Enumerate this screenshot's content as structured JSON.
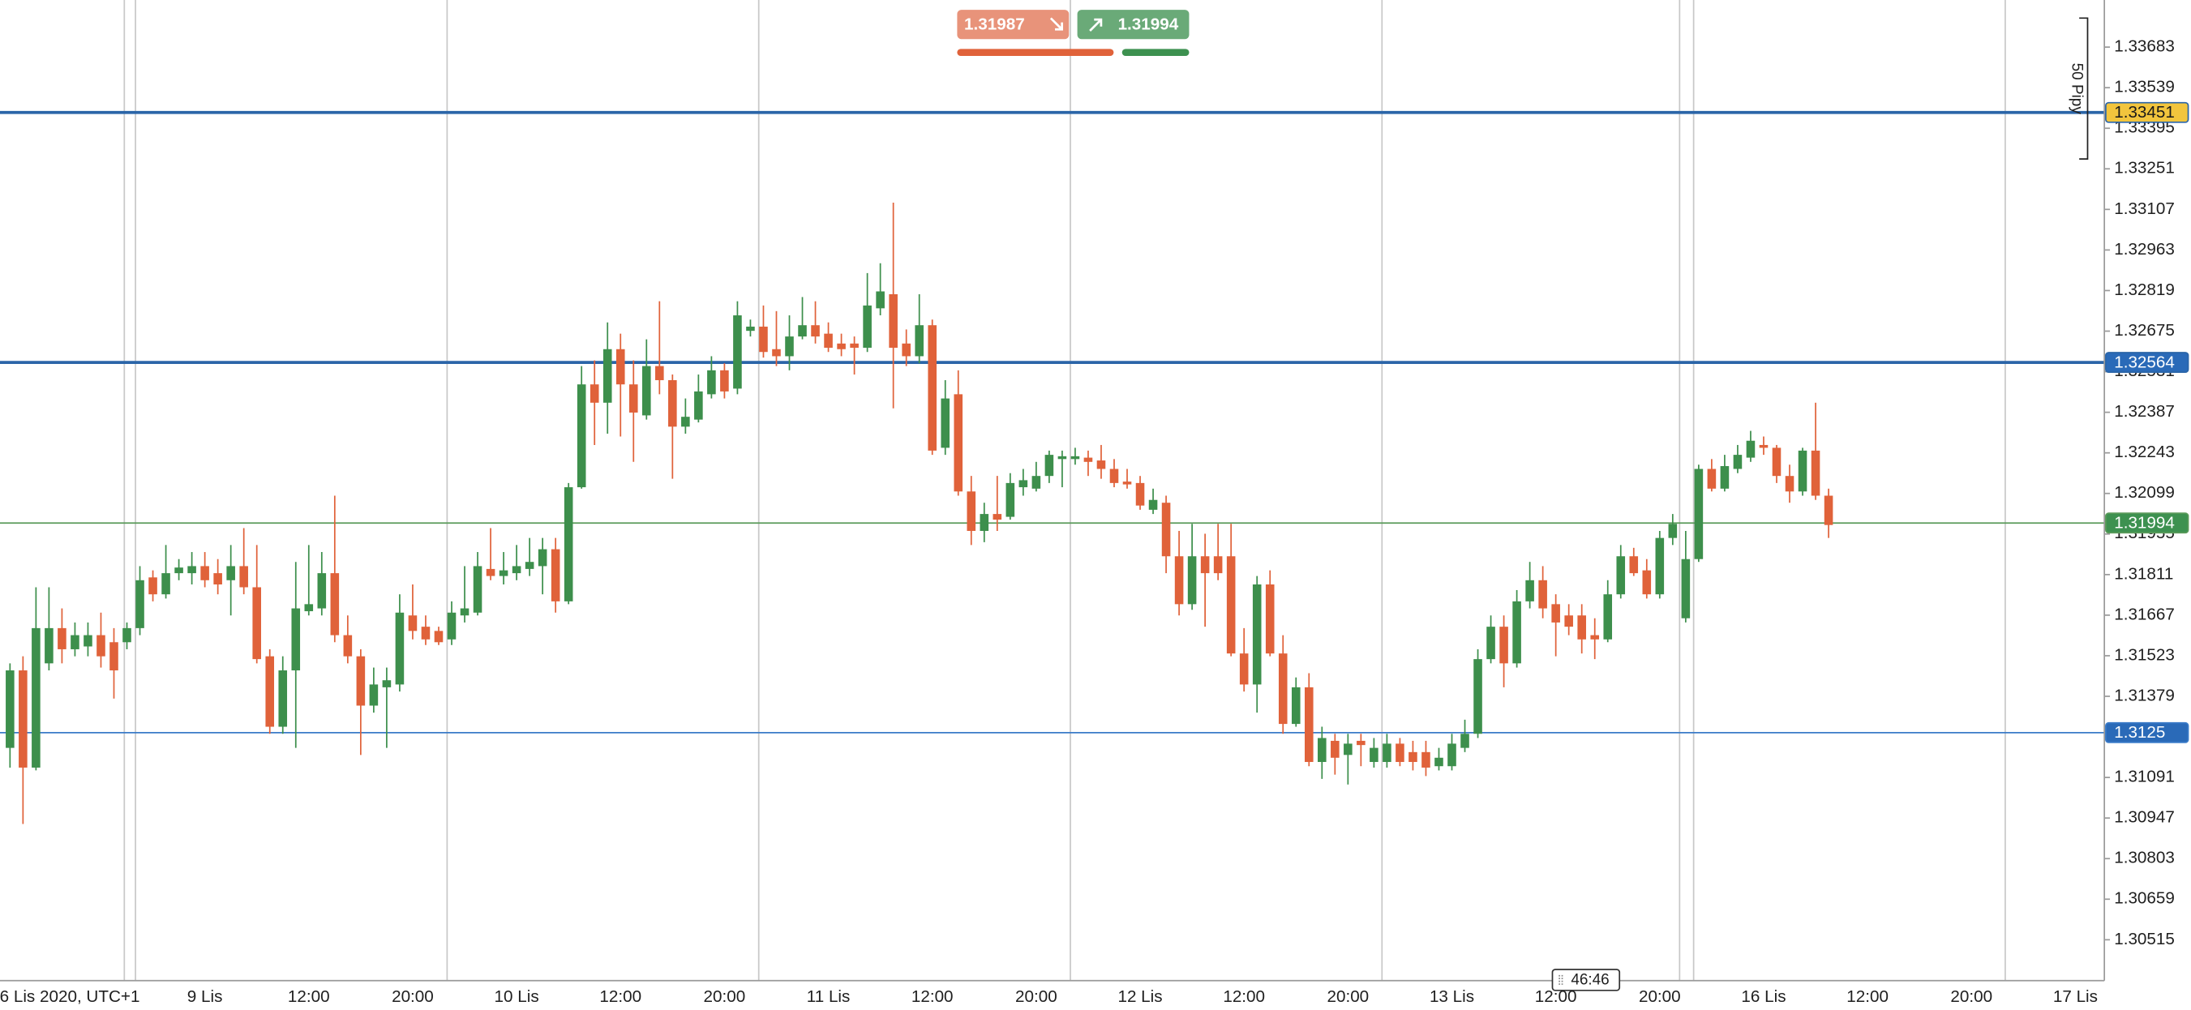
{
  "chart_data": {
    "type": "candlestick",
    "up_color": "#3d8f4c",
    "down_color": "#e0623a",
    "xlim": [
      -0.77,
      161.23
    ],
    "ylim": [
      1.3037,
      1.3385
    ],
    "yticks": [
      1.30515,
      1.30659,
      1.30803,
      1.30947,
      1.31091,
      1.31235,
      1.31379,
      1.31523,
      1.31667,
      1.31811,
      1.31955,
      1.32099,
      1.32243,
      1.32387,
      1.32531,
      1.32675,
      1.32819,
      1.32963,
      1.33107,
      1.33251,
      1.33395,
      1.33539,
      1.33683
    ],
    "xticks": [
      {
        "value": 4.6,
        "label": "6 Lis 2020, UTC+1"
      },
      {
        "value": 15,
        "label": "9 Lis"
      },
      {
        "value": 23,
        "label": "12:00"
      },
      {
        "value": 31,
        "label": "20:00"
      },
      {
        "value": 39,
        "label": "10 Lis"
      },
      {
        "value": 47,
        "label": "12:00"
      },
      {
        "value": 55,
        "label": "20:00"
      },
      {
        "value": 63,
        "label": "11 Lis"
      },
      {
        "value": 71,
        "label": "12:00"
      },
      {
        "value": 79,
        "label": "20:00"
      },
      {
        "value": 87,
        "label": "12 Lis"
      },
      {
        "value": 95,
        "label": "12:00"
      },
      {
        "value": 103,
        "label": "20:00"
      },
      {
        "value": 111,
        "label": "13 Lis"
      },
      {
        "value": 119,
        "label": "12:00"
      },
      {
        "value": 127,
        "label": "20:00"
      },
      {
        "value": 135,
        "label": "16 Lis"
      },
      {
        "value": 143,
        "label": "12:00"
      },
      {
        "value": 151,
        "label": "20:00"
      },
      {
        "value": 159,
        "label": "17 Lis"
      }
    ],
    "xgrid": [
      8.8,
      9.66,
      33.65,
      57.64,
      81.63,
      105.62,
      128.53,
      129.61,
      153.6
    ],
    "levels": [
      {
        "value": 1.33451,
        "color": "#2b65a8",
        "weight": "bold",
        "label_bg": "#f2c53d",
        "label_color": "#1a1a1a"
      },
      {
        "value": 1.32564,
        "color": "#2b65a8",
        "weight": "bold",
        "label_bg": "#2a6ab8",
        "label_color": "#ffffff"
      },
      {
        "value": 1.31994,
        "color": "#5a9a5a",
        "weight": "thin",
        "label_bg": "#3d9150",
        "label_color": "#ffffff"
      },
      {
        "value": 1.3125,
        "color": "#3a7bc8",
        "weight": "thin",
        "label_bg": "#2a6ab8",
        "label_color": "#ffffff"
      }
    ],
    "bid": 1.31987,
    "ask": 1.31994,
    "ruler": {
      "label": "50 Pipy",
      "high": 1.33786,
      "low": 1.33286
    },
    "countdown": "46:46",
    "x": [
      0,
      1,
      2,
      3,
      4,
      5,
      6,
      7,
      8,
      9,
      10,
      11,
      12,
      13,
      14,
      15,
      16,
      17,
      18,
      19,
      20,
      21,
      22,
      23,
      24,
      25,
      26,
      27,
      28,
      29,
      30,
      31,
      32,
      33,
      34,
      35,
      36,
      37,
      38,
      39,
      40,
      41,
      42,
      43,
      44,
      45,
      46,
      47,
      48,
      49,
      50,
      51,
      52,
      53,
      54,
      55,
      56,
      57,
      58,
      59,
      60,
      61,
      62,
      63,
      64,
      65,
      66,
      67,
      68,
      69,
      70,
      71,
      72,
      73,
      74,
      75,
      76,
      77,
      78,
      79,
      80,
      81,
      82,
      83,
      84,
      85,
      86,
      87,
      88,
      89,
      90,
      91,
      92,
      93,
      94,
      95,
      96,
      97,
      98,
      99,
      100,
      101,
      102,
      103,
      104,
      105,
      106,
      107,
      108,
      109,
      110,
      111,
      112,
      113,
      114,
      115,
      116,
      117,
      118,
      119,
      120,
      121,
      122,
      123,
      124,
      125,
      126,
      127,
      128,
      129,
      130,
      131,
      132,
      133,
      134,
      135,
      136,
      137,
      138,
      139,
      140
    ],
    "candles": [
      [
        1.31196,
        1.31496,
        1.31126,
        1.31471
      ],
      [
        1.31471,
        1.31521,
        1.30926,
        1.31126
      ],
      [
        1.31126,
        1.31766,
        1.31116,
        1.31621
      ],
      [
        1.31496,
        1.31766,
        1.31471,
        1.31621
      ],
      [
        1.31621,
        1.31691,
        1.31496,
        1.31546
      ],
      [
        1.31546,
        1.31641,
        1.31521,
        1.31596
      ],
      [
        1.31556,
        1.31641,
        1.31521,
        1.31596
      ],
      [
        1.31596,
        1.31676,
        1.31481,
        1.31521
      ],
      [
        1.31571,
        1.31621,
        1.31371,
        1.31471
      ],
      [
        1.31571,
        1.31641,
        1.31546,
        1.31621
      ],
      [
        1.31621,
        1.31841,
        1.31596,
        1.31791
      ],
      [
        1.31801,
        1.31826,
        1.31716,
        1.31741
      ],
      [
        1.31741,
        1.31916,
        1.31726,
        1.31816
      ],
      [
        1.31816,
        1.31866,
        1.31791,
        1.31836
      ],
      [
        1.31816,
        1.31891,
        1.31776,
        1.31841
      ],
      [
        1.31841,
        1.31891,
        1.31766,
        1.31791
      ],
      [
        1.31816,
        1.31866,
        1.31741,
        1.31776
      ],
      [
        1.31791,
        1.31916,
        1.31666,
        1.31841
      ],
      [
        1.31841,
        1.31976,
        1.31741,
        1.31766
      ],
      [
        1.31766,
        1.31916,
        1.31496,
        1.31511
      ],
      [
        1.31521,
        1.31546,
        1.31246,
        1.31271
      ],
      [
        1.31271,
        1.31521,
        1.31246,
        1.31471
      ],
      [
        1.31471,
        1.31856,
        1.31196,
        1.31691
      ],
      [
        1.31681,
        1.31916,
        1.31666,
        1.31706
      ],
      [
        1.31691,
        1.31891,
        1.31666,
        1.31816
      ],
      [
        1.31816,
        1.32091,
        1.31571,
        1.31596
      ],
      [
        1.31596,
        1.31666,
        1.31496,
        1.31521
      ],
      [
        1.31521,
        1.31546,
        1.31171,
        1.31346
      ],
      [
        1.31346,
        1.31481,
        1.31321,
        1.31421
      ],
      [
        1.31411,
        1.31481,
        1.31196,
        1.31436
      ],
      [
        1.31421,
        1.31741,
        1.31396,
        1.31676
      ],
      [
        1.31666,
        1.31776,
        1.31581,
        1.31611
      ],
      [
        1.31626,
        1.31666,
        1.31561,
        1.31581
      ],
      [
        1.31611,
        1.31626,
        1.31561,
        1.31571
      ],
      [
        1.31581,
        1.31716,
        1.31561,
        1.31676
      ],
      [
        1.31666,
        1.31841,
        1.31641,
        1.31691
      ],
      [
        1.31676,
        1.31891,
        1.31666,
        1.31841
      ],
      [
        1.31831,
        1.31976,
        1.31791,
        1.31806
      ],
      [
        1.31806,
        1.31891,
        1.31776,
        1.31826
      ],
      [
        1.31816,
        1.31916,
        1.31791,
        1.31841
      ],
      [
        1.31831,
        1.31941,
        1.31806,
        1.31856
      ],
      [
        1.31841,
        1.31941,
        1.31741,
        1.31901
      ],
      [
        1.31901,
        1.31941,
        1.31676,
        1.31716
      ],
      [
        1.31716,
        1.32136,
        1.31706,
        1.32121
      ],
      [
        1.32121,
        1.32551,
        1.32116,
        1.32486
      ],
      [
        1.32486,
        1.32571,
        1.32271,
        1.32421
      ],
      [
        1.32421,
        1.32706,
        1.32311,
        1.32611
      ],
      [
        1.32611,
        1.32666,
        1.32301,
        1.32486
      ],
      [
        1.32486,
        1.32571,
        1.32211,
        1.32386
      ],
      [
        1.32376,
        1.32646,
        1.32361,
        1.32551
      ],
      [
        1.32551,
        1.32781,
        1.32451,
        1.32501
      ],
      [
        1.32501,
        1.32521,
        1.32151,
        1.32336
      ],
      [
        1.32336,
        1.32436,
        1.32311,
        1.32371
      ],
      [
        1.32361,
        1.32521,
        1.32351,
        1.32461
      ],
      [
        1.32451,
        1.32586,
        1.32436,
        1.32536
      ],
      [
        1.32536,
        1.32561,
        1.32436,
        1.32461
      ],
      [
        1.32471,
        1.32781,
        1.32451,
        1.32731
      ],
      [
        1.32676,
        1.32716,
        1.32656,
        1.32691
      ],
      [
        1.32691,
        1.32766,
        1.32581,
        1.32601
      ],
      [
        1.32611,
        1.32746,
        1.32551,
        1.32586
      ],
      [
        1.32586,
        1.32731,
        1.32536,
        1.32656
      ],
      [
        1.32656,
        1.32796,
        1.32646,
        1.32696
      ],
      [
        1.32696,
        1.32781,
        1.32631,
        1.32656
      ],
      [
        1.32666,
        1.32706,
        1.32601,
        1.32616
      ],
      [
        1.32631,
        1.32666,
        1.32586,
        1.32611
      ],
      [
        1.32631,
        1.32656,
        1.32521,
        1.32616
      ],
      [
        1.32616,
        1.32881,
        1.32601,
        1.32766
      ],
      [
        1.32756,
        1.32916,
        1.32731,
        1.32816
      ],
      [
        1.32806,
        1.33131,
        1.32401,
        1.32616
      ],
      [
        1.32631,
        1.32681,
        1.32551,
        1.32586
      ],
      [
        1.32586,
        1.32806,
        1.32561,
        1.32696
      ],
      [
        1.32696,
        1.32716,
        1.32236,
        1.32251
      ],
      [
        1.32261,
        1.32501,
        1.32236,
        1.32436
      ],
      [
        1.32451,
        1.32536,
        1.32091,
        1.32106
      ],
      [
        1.32106,
        1.32161,
        1.31916,
        1.31966
      ],
      [
        1.31966,
        1.32066,
        1.31926,
        1.32026
      ],
      [
        1.32026,
        1.32161,
        1.31966,
        1.32006
      ],
      [
        1.32016,
        1.32171,
        1.32006,
        1.32136
      ],
      [
        1.32121,
        1.32186,
        1.32091,
        1.32146
      ],
      [
        1.32116,
        1.32211,
        1.32106,
        1.32161
      ],
      [
        1.32161,
        1.32251,
        1.32136,
        1.32236
      ],
      [
        1.32221,
        1.32251,
        1.32121,
        1.32231
      ],
      [
        1.32221,
        1.32261,
        1.32201,
        1.32231
      ],
      [
        1.32226,
        1.32251,
        1.32161,
        1.32211
      ],
      [
        1.32216,
        1.32271,
        1.32151,
        1.32186
      ],
      [
        1.32186,
        1.32221,
        1.32121,
        1.32136
      ],
      [
        1.32141,
        1.32186,
        1.32116,
        1.32131
      ],
      [
        1.32136,
        1.32161,
        1.32041,
        1.32056
      ],
      [
        1.32041,
        1.32116,
        1.32026,
        1.32076
      ],
      [
        1.32066,
        1.32091,
        1.31816,
        1.31876
      ],
      [
        1.31876,
        1.31966,
        1.31666,
        1.31706
      ],
      [
        1.31706,
        1.31991,
        1.31686,
        1.31876
      ],
      [
        1.31876,
        1.31956,
        1.31626,
        1.31816
      ],
      [
        1.31876,
        1.31991,
        1.31791,
        1.31816
      ],
      [
        1.31876,
        1.31991,
        1.31521,
        1.31531
      ],
      [
        1.31531,
        1.31621,
        1.31396,
        1.31421
      ],
      [
        1.31421,
        1.31806,
        1.31321,
        1.31776
      ],
      [
        1.31776,
        1.31826,
        1.31521,
        1.31531
      ],
      [
        1.31531,
        1.31596,
        1.31246,
        1.31281
      ],
      [
        1.31281,
        1.31446,
        1.31271,
        1.31411
      ],
      [
        1.31411,
        1.31461,
        1.31131,
        1.31146
      ],
      [
        1.31146,
        1.31271,
        1.31086,
        1.31231
      ],
      [
        1.31221,
        1.31246,
        1.31101,
        1.31161
      ],
      [
        1.31171,
        1.31246,
        1.31066,
        1.31211
      ],
      [
        1.31221,
        1.31246,
        1.31131,
        1.31206
      ],
      [
        1.31146,
        1.31231,
        1.31126,
        1.31196
      ],
      [
        1.31146,
        1.31246,
        1.31126,
        1.31211
      ],
      [
        1.31211,
        1.31231,
        1.31131,
        1.31146
      ],
      [
        1.31181,
        1.31221,
        1.31116,
        1.31146
      ],
      [
        1.31181,
        1.31221,
        1.31096,
        1.31126
      ],
      [
        1.31131,
        1.31196,
        1.31116,
        1.31161
      ],
      [
        1.31131,
        1.31246,
        1.31116,
        1.31211
      ],
      [
        1.31196,
        1.31296,
        1.31181,
        1.31246
      ],
      [
        1.31246,
        1.31546,
        1.31231,
        1.31511
      ],
      [
        1.31511,
        1.31666,
        1.31496,
        1.31626
      ],
      [
        1.31626,
        1.31666,
        1.31411,
        1.31496
      ],
      [
        1.31496,
        1.31756,
        1.31481,
        1.31716
      ],
      [
        1.31716,
        1.31856,
        1.31691,
        1.31791
      ],
      [
        1.31791,
        1.31841,
        1.31656,
        1.31691
      ],
      [
        1.31706,
        1.31741,
        1.31521,
        1.31641
      ],
      [
        1.31666,
        1.31706,
        1.31596,
        1.31626
      ],
      [
        1.31666,
        1.31706,
        1.31531,
        1.31581
      ],
      [
        1.31596,
        1.31656,
        1.31511,
        1.31581
      ],
      [
        1.31581,
        1.31791,
        1.31571,
        1.31741
      ],
      [
        1.31741,
        1.31916,
        1.31726,
        1.31876
      ],
      [
        1.31876,
        1.31906,
        1.31806,
        1.31816
      ],
      [
        1.31826,
        1.31866,
        1.31726,
        1.31741
      ],
      [
        1.31741,
        1.31966,
        1.31726,
        1.31941
      ],
      [
        1.31941,
        1.32026,
        1.31916,
        1.31991
      ],
      [
        1.31656,
        1.31966,
        1.31641,
        1.31866
      ],
      [
        1.31866,
        1.32201,
        1.31856,
        1.32186
      ],
      [
        1.32186,
        1.32221,
        1.32106,
        1.32116
      ],
      [
        1.32116,
        1.32236,
        1.32106,
        1.32196
      ],
      [
        1.32186,
        1.32271,
        1.32171,
        1.32236
      ],
      [
        1.32226,
        1.32321,
        1.32211,
        1.32286
      ],
      [
        1.32271,
        1.32301,
        1.32236,
        1.32261
      ],
      [
        1.32261,
        1.32271,
        1.32136,
        1.32161
      ],
      [
        1.32161,
        1.32201,
        1.32066,
        1.32106
      ],
      [
        1.32106,
        1.32261,
        1.32091,
        1.32251
      ],
      [
        1.32251,
        1.32421,
        1.32076,
        1.32091
      ],
      [
        1.32091,
        1.32116,
        1.31941,
        1.31987
      ]
    ]
  }
}
